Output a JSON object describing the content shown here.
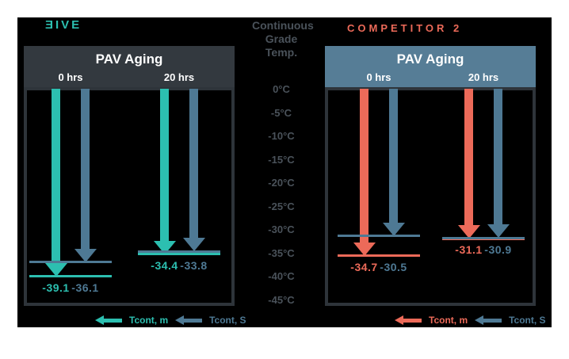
{
  "brand": {
    "name": "ƎIVE",
    "color": "#2CBFB0"
  },
  "competitor": {
    "name": "COMPETITOR 2",
    "color": "#EC6A59"
  },
  "chart_data": {
    "type": "bar",
    "subtype": "downward-arrow-temperature-comparison",
    "axis": {
      "label": "Continuous Grade Temp.",
      "title_lines": [
        "Continuous",
        "Grade",
        "Temp."
      ],
      "ticks": [
        "0°C",
        "-5°C",
        "-10°C",
        "-15°C",
        "-20°C",
        "-25°C",
        "-30°C",
        "-35°C",
        "-40°C",
        "-45°C"
      ],
      "tick_values": [
        0,
        -5,
        -10,
        -15,
        -20,
        -25,
        -30,
        -35,
        -40,
        -45
      ],
      "range": [
        0,
        -45
      ]
    },
    "categories": [
      "0 hrs",
      "20 hrs"
    ],
    "legend_position": "bottom",
    "grid": false,
    "panels": [
      {
        "brand": "ƎIVE",
        "title": "PAV Aging",
        "header_color": "#33393F",
        "series": [
          {
            "name": "Tcont, m",
            "color": "#2CBFB0",
            "values": [
              -39.1,
              -34.4
            ]
          },
          {
            "name": "Tcont, S",
            "color": "#4E7994",
            "values": [
              -36.1,
              -33.8
            ]
          }
        ]
      },
      {
        "brand": "COMPETITOR 2",
        "title": "PAV Aging",
        "header_color": "#567D96",
        "series": [
          {
            "name": "Tcont, m",
            "color": "#EC6A59",
            "values": [
              -34.7,
              -31.1
            ]
          },
          {
            "name": "Tcont, S",
            "color": "#4E7994",
            "values": [
              -30.5,
              -30.9
            ]
          }
        ]
      }
    ]
  },
  "colors": {
    "background": "#FFFFFF",
    "band": "#000000",
    "teal": "#2CBFB0",
    "coral": "#EC6A59",
    "steel_blue": "#4E7994",
    "charcoal_header": "#33393F",
    "blue_header": "#567D96",
    "axis_text": "#4A525A",
    "plot_border": "#2E343A"
  }
}
